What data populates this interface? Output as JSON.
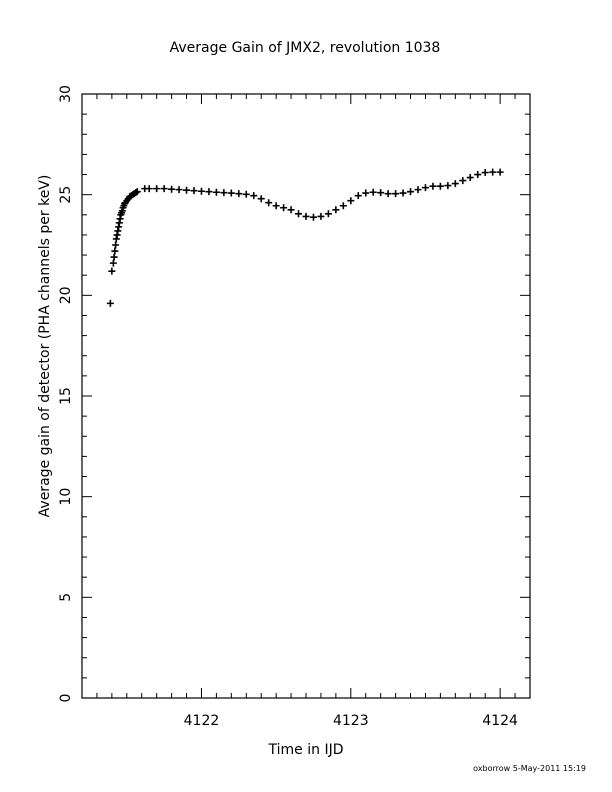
{
  "chart_data": {
    "type": "scatter",
    "title": "Average Gain of JMX2, revolution 1038",
    "xlabel": "Time in IJD",
    "ylabel": "Average gain of detector (PHA channels per keV)",
    "xlim": [
      4121.2,
      4124.2
    ],
    "ylim": [
      0,
      30
    ],
    "x_major_ticks": [
      4122,
      4123,
      4124
    ],
    "x_minor_step": 0.1,
    "y_major_ticks": [
      0,
      5,
      10,
      15,
      20,
      25,
      30
    ],
    "y_minor_step": 1,
    "x_tick_labels": [
      "4122",
      "4123",
      "4124"
    ],
    "y_tick_labels": [
      "0",
      "5",
      "10",
      "15",
      "20",
      "25",
      "30"
    ],
    "marker": "plus",
    "color": "#000000",
    "grid": false,
    "legend": "none",
    "series": [
      {
        "points": [
          [
            4121.39,
            19.6
          ],
          [
            4121.4,
            21.2
          ],
          [
            4121.41,
            21.6
          ],
          [
            4121.415,
            21.9
          ],
          [
            4121.42,
            22.2
          ],
          [
            4121.425,
            22.5
          ],
          [
            4121.43,
            22.8
          ],
          [
            4121.435,
            23.0
          ],
          [
            4121.44,
            23.2
          ],
          [
            4121.445,
            23.4
          ],
          [
            4121.45,
            23.6
          ],
          [
            4121.455,
            23.8
          ],
          [
            4121.46,
            24.0
          ],
          [
            4121.465,
            24.1
          ],
          [
            4121.47,
            24.2
          ],
          [
            4121.475,
            24.35
          ],
          [
            4121.48,
            24.45
          ],
          [
            4121.485,
            24.55
          ],
          [
            4121.49,
            24.6
          ],
          [
            4121.5,
            24.7
          ],
          [
            4121.51,
            24.8
          ],
          [
            4121.52,
            24.9
          ],
          [
            4121.53,
            24.95
          ],
          [
            4121.54,
            25.0
          ],
          [
            4121.55,
            25.05
          ],
          [
            4121.56,
            25.1
          ],
          [
            4121.57,
            25.15
          ],
          [
            4121.62,
            25.3
          ],
          [
            4121.65,
            25.3
          ],
          [
            4121.7,
            25.3
          ],
          [
            4121.75,
            25.3
          ],
          [
            4121.8,
            25.27
          ],
          [
            4121.85,
            25.25
          ],
          [
            4121.9,
            25.22
          ],
          [
            4121.95,
            25.2
          ],
          [
            4122.0,
            25.17
          ],
          [
            4122.05,
            25.15
          ],
          [
            4122.1,
            25.12
          ],
          [
            4122.15,
            25.1
          ],
          [
            4122.2,
            25.08
          ],
          [
            4122.25,
            25.05
          ],
          [
            4122.3,
            25.02
          ],
          [
            4122.35,
            24.95
          ],
          [
            4122.4,
            24.8
          ],
          [
            4122.45,
            24.6
          ],
          [
            4122.5,
            24.45
          ],
          [
            4122.55,
            24.35
          ],
          [
            4122.6,
            24.25
          ],
          [
            4122.65,
            24.05
          ],
          [
            4122.7,
            23.92
          ],
          [
            4122.75,
            23.88
          ],
          [
            4122.8,
            23.92
          ],
          [
            4122.85,
            24.05
          ],
          [
            4122.9,
            24.25
          ],
          [
            4122.95,
            24.45
          ],
          [
            4123.0,
            24.7
          ],
          [
            4123.05,
            24.95
          ],
          [
            4123.1,
            25.08
          ],
          [
            4123.15,
            25.12
          ],
          [
            4123.2,
            25.1
          ],
          [
            4123.25,
            25.05
          ],
          [
            4123.3,
            25.05
          ],
          [
            4123.35,
            25.08
          ],
          [
            4123.4,
            25.15
          ],
          [
            4123.45,
            25.25
          ],
          [
            4123.5,
            25.35
          ],
          [
            4123.55,
            25.42
          ],
          [
            4123.6,
            25.42
          ],
          [
            4123.65,
            25.45
          ],
          [
            4123.7,
            25.55
          ],
          [
            4123.75,
            25.7
          ],
          [
            4123.8,
            25.85
          ],
          [
            4123.85,
            26.0
          ],
          [
            4123.9,
            26.1
          ],
          [
            4123.95,
            26.12
          ],
          [
            4124.0,
            26.12
          ]
        ]
      }
    ]
  },
  "footer": {
    "credit": "oxborrow  5-May-2011 15:19"
  }
}
